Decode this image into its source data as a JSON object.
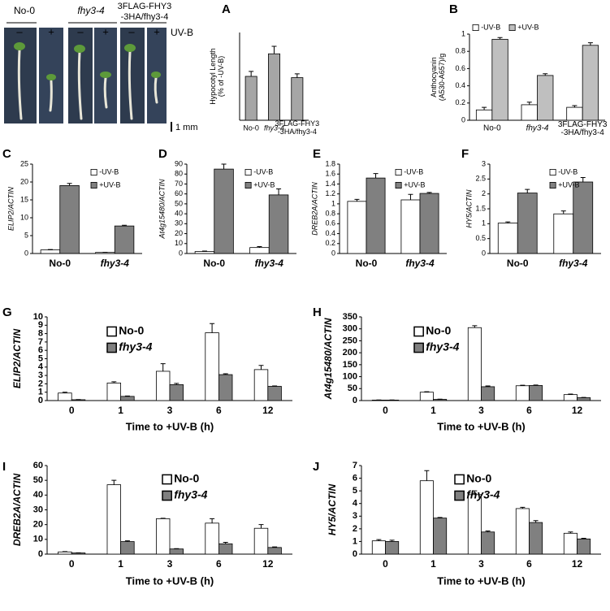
{
  "photo": {
    "genotypes": [
      "No-0",
      "fhy3-4",
      [
        "3FLAG-FHY3",
        "-3HA/fhy3-4"
      ]
    ],
    "signs": [
      "–",
      "+"
    ],
    "treatment": "UV-B",
    "scale": "1 mm"
  },
  "chart_data": [
    {
      "panel": "A",
      "type": "bar",
      "ylabel": [
        "Hypocotyl Length",
        "(% of -UV-B)"
      ],
      "categories": [
        "No-0",
        "fhy3-4",
        [
          "3FLAG-FHY3",
          "-3HA/fhy3-4"
        ]
      ],
      "values": [
        35,
        53,
        34
      ],
      "errors": [
        4,
        6,
        3
      ],
      "color": "#a6a6a6",
      "ylim": [
        0,
        70
      ]
    },
    {
      "panel": "B",
      "type": "bar",
      "ylabel": [
        "Anthocyanin",
        "(A530-A657)/g"
      ],
      "categories": [
        "No-0",
        "fhy3-4",
        [
          "3FLAG-FHY3",
          "-3HA/fhy3-4"
        ]
      ],
      "series": [
        {
          "name": "-UV-B",
          "color": "#ffffff",
          "values": [
            0.12,
            0.18,
            0.15
          ],
          "errors": [
            0.03,
            0.03,
            0.02
          ]
        },
        {
          "name": "+UV-B",
          "color": "#bfbfbf",
          "values": [
            0.94,
            0.52,
            0.87
          ],
          "errors": [
            0.02,
            0.02,
            0.03
          ]
        }
      ],
      "ylim": [
        0,
        1
      ],
      "yticks": [
        0,
        0.2,
        0.4,
        0.6,
        0.8,
        1
      ]
    },
    {
      "panel": "C",
      "type": "bar",
      "ylabel": "ELIP2/ACTIN",
      "categories": [
        "No-0",
        "fhy3-4"
      ],
      "series": [
        {
          "name": "-UV-B",
          "color": "#ffffff",
          "values": [
            1,
            0.3
          ],
          "errors": [
            0.1,
            0.05
          ]
        },
        {
          "name": "+UV-B",
          "color": "#808080",
          "values": [
            19,
            7.7
          ],
          "errors": [
            0.6,
            0.2
          ]
        }
      ],
      "ylim": [
        0,
        25
      ],
      "yticks": [
        0,
        5,
        10,
        15,
        20,
        25
      ]
    },
    {
      "panel": "D",
      "type": "bar",
      "ylabel": "At4g15480/ACTIN",
      "categories": [
        "No-0",
        "fhy3-4"
      ],
      "series": [
        {
          "name": "-UV-B",
          "color": "#ffffff",
          "values": [
            2,
            6
          ],
          "errors": [
            0.5,
            1
          ]
        },
        {
          "name": "+UV-B",
          "color": "#808080",
          "values": [
            85,
            59
          ],
          "errors": [
            5,
            6
          ]
        }
      ],
      "ylim": [
        0,
        90
      ],
      "yticks": [
        0,
        10,
        20,
        30,
        40,
        50,
        60,
        70,
        80,
        90
      ]
    },
    {
      "panel": "E",
      "type": "bar",
      "ylabel": "DREB2A/ACTIN",
      "categories": [
        "No-0",
        "fhy3-4"
      ],
      "series": [
        {
          "name": "-UV-B",
          "color": "#ffffff",
          "values": [
            1.05,
            1.08
          ],
          "errors": [
            0.04,
            0.11
          ]
        },
        {
          "name": "+UV-B",
          "color": "#808080",
          "values": [
            1.52,
            1.21
          ],
          "errors": [
            0.09,
            0.02
          ]
        }
      ],
      "ylim": [
        0,
        1.8
      ],
      "yticks": [
        0,
        0.2,
        0.4,
        0.6,
        0.8,
        1,
        1.2,
        1.4,
        1.6,
        1.8
      ]
    },
    {
      "panel": "F",
      "type": "bar",
      "ylabel": "HY5/ACTIN",
      "categories": [
        "No-0",
        "fhy3-4"
      ],
      "series": [
        {
          "name": "-UV-B",
          "color": "#ffffff",
          "values": [
            1.02,
            1.33
          ],
          "errors": [
            0.04,
            0.1
          ]
        },
        {
          "name": "+UV-B",
          "color": "#808080",
          "values": [
            2.03,
            2.4
          ],
          "errors": [
            0.12,
            0.15
          ]
        }
      ],
      "ylim": [
        0,
        3
      ],
      "yticks": [
        0,
        0.5,
        1,
        1.5,
        2,
        2.5,
        3
      ]
    },
    {
      "panel": "G",
      "type": "bar",
      "ylabel": "ELIP2/ACTIN",
      "xlabel": "Time to +UV-B (h)",
      "categories": [
        "0",
        "1",
        "3",
        "6",
        "12"
      ],
      "series": [
        {
          "name": "No-0",
          "color": "#ffffff",
          "values": [
            0.9,
            2.1,
            3.5,
            8.1,
            3.7
          ],
          "errors": [
            0.1,
            0.15,
            0.9,
            1.1,
            0.5
          ]
        },
        {
          "name": "fhy3-4",
          "color": "#808080",
          "values": [
            0.1,
            0.5,
            1.9,
            3.1,
            1.7
          ],
          "errors": [
            0.02,
            0.05,
            0.15,
            0.1,
            0.05
          ]
        }
      ],
      "ylim": [
        0,
        10
      ],
      "yticks": [
        0,
        1,
        2,
        3,
        4,
        5,
        6,
        7,
        8,
        9,
        10
      ]
    },
    {
      "panel": "H",
      "type": "bar",
      "ylabel": "At4g15480/ACTIN",
      "xlabel": "Time to +UV-B (h)",
      "categories": [
        "0",
        "1",
        "3",
        "6",
        "12"
      ],
      "series": [
        {
          "name": "No-0",
          "color": "#ffffff",
          "values": [
            2,
            35,
            305,
            62,
            25
          ],
          "errors": [
            0.5,
            2,
            8,
            2,
            2
          ]
        },
        {
          "name": "fhy3-4",
          "color": "#808080",
          "values": [
            2,
            5,
            58,
            63,
            12
          ],
          "errors": [
            0.5,
            1,
            3,
            2,
            1
          ]
        }
      ],
      "ylim": [
        0,
        350
      ],
      "yticks": [
        0,
        50,
        100,
        150,
        200,
        250,
        300,
        350
      ]
    },
    {
      "panel": "I",
      "type": "bar",
      "ylabel": "DREB2A/ACTIN",
      "xlabel": "Time to +UV-B (h)",
      "categories": [
        "0",
        "1",
        "3",
        "6",
        "12"
      ],
      "series": [
        {
          "name": "No-0",
          "color": "#ffffff",
          "values": [
            1.5,
            47,
            24,
            21,
            17.5
          ],
          "errors": [
            0.2,
            3,
            0.3,
            3,
            2.5
          ]
        },
        {
          "name": "fhy3-4",
          "color": "#808080",
          "values": [
            0.8,
            8.5,
            3.5,
            7,
            4.5
          ],
          "errors": [
            0.1,
            0.5,
            0.2,
            1,
            0.4
          ]
        }
      ],
      "ylim": [
        0,
        60
      ],
      "yticks": [
        0,
        10,
        20,
        30,
        40,
        50,
        60
      ]
    },
    {
      "panel": "J",
      "type": "bar",
      "ylabel": "HY5/ACTIN",
      "xlabel": "Time to +UV-B (h)",
      "categories": [
        "0",
        "1",
        "3",
        "6",
        "12"
      ],
      "series": [
        {
          "name": "No-0",
          "color": "#ffffff",
          "values": [
            1.05,
            5.8,
            4.7,
            3.6,
            1.65
          ],
          "errors": [
            0.1,
            0.8,
            0.3,
            0.1,
            0.1
          ]
        },
        {
          "name": "fhy3-4",
          "color": "#808080",
          "values": [
            1.0,
            2.85,
            1.75,
            2.5,
            1.2
          ],
          "errors": [
            0.1,
            0.05,
            0.08,
            0.15,
            0.05
          ]
        }
      ],
      "ylim": [
        0,
        7
      ],
      "yticks": [
        0,
        1,
        2,
        3,
        4,
        5,
        6,
        7
      ]
    }
  ]
}
